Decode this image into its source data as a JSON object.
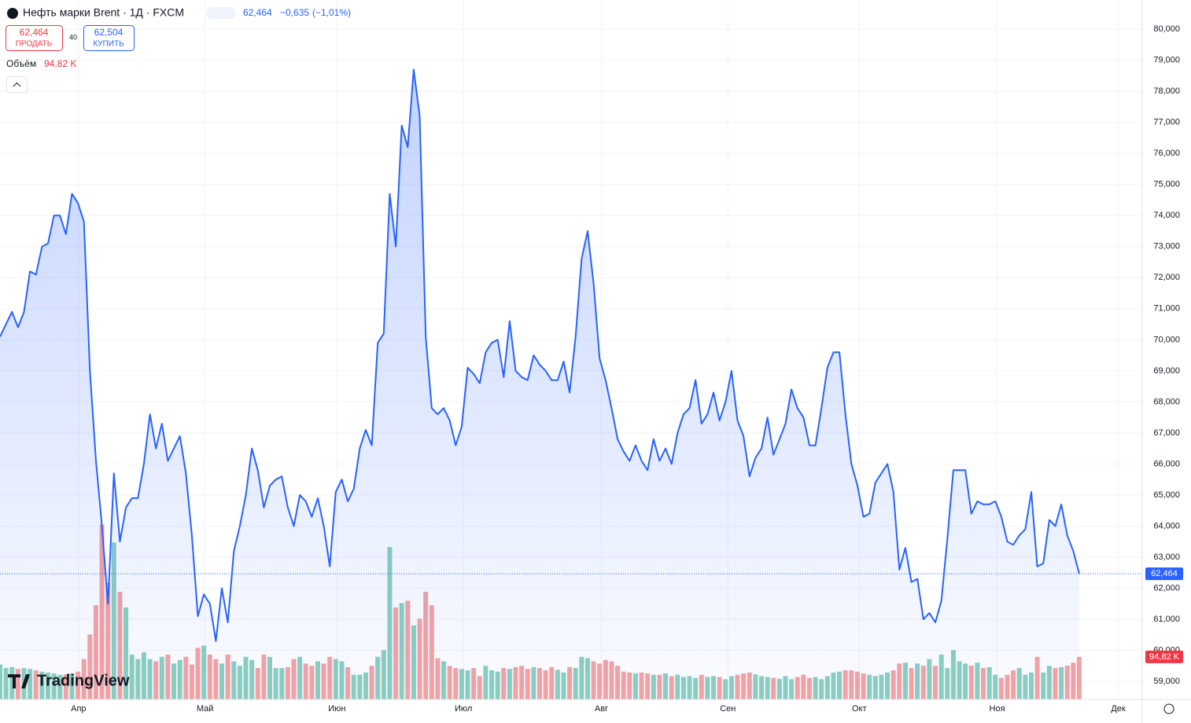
{
  "header": {
    "price": "62,464",
    "change": "−0,635",
    "change_pct": "(−1,01%)",
    "sell_price": "62,464",
    "sell_label": "ПРОДАТЬ",
    "spread": "40",
    "buy_price": "62,504",
    "buy_label": "КУПИТЬ",
    "watermark": "TradingView"
  },
  "chart_data": {
    "type": "area",
    "title": "Нефть марки Brent · 1Д · FXCM",
    "color": "#2962ff",
    "values": [
      70.1,
      70.5,
      70.9,
      70.4,
      70.9,
      72.2,
      72.1,
      73.0,
      73.1,
      74.0,
      74.0,
      73.4,
      74.7,
      74.4,
      73.8,
      69.0,
      66.1,
      64.0,
      61.5,
      65.7,
      63.5,
      64.6,
      64.9,
      64.9,
      66.0,
      67.6,
      66.5,
      67.3,
      66.1,
      66.5,
      66.9,
      65.7,
      63.7,
      61.1,
      61.8,
      61.5,
      60.3,
      62.0,
      60.9,
      63.2,
      64.0,
      65.0,
      66.5,
      65.8,
      64.6,
      65.3,
      65.5,
      65.6,
      64.6,
      64.0,
      65.0,
      64.8,
      64.3,
      64.9,
      64.0,
      62.7,
      65.1,
      65.5,
      64.8,
      65.2,
      66.5,
      67.1,
      66.6,
      69.9,
      70.2,
      74.7,
      73.0,
      76.9,
      76.2,
      78.7,
      77.2,
      70.1,
      67.8,
      67.6,
      67.8,
      67.4,
      66.6,
      67.2,
      69.1,
      68.9,
      68.6,
      69.6,
      69.9,
      70.0,
      68.8,
      70.6,
      69.0,
      68.8,
      68.7,
      69.5,
      69.2,
      69.0,
      68.7,
      68.7,
      69.3,
      68.3,
      70.1,
      72.6,
      73.5,
      71.8,
      69.4,
      68.7,
      67.8,
      66.8,
      66.4,
      66.1,
      66.6,
      66.1,
      65.8,
      66.8,
      66.1,
      66.5,
      66.0,
      67.0,
      67.6,
      67.8,
      68.7,
      67.3,
      67.6,
      68.3,
      67.4,
      68.0,
      69.0,
      67.4,
      66.9,
      65.6,
      66.2,
      66.5,
      67.5,
      66.3,
      66.8,
      67.3,
      68.4,
      67.8,
      67.5,
      66.6,
      66.6,
      67.8,
      69.1,
      69.6,
      69.6,
      67.6,
      66.0,
      65.3,
      64.3,
      64.4,
      65.4,
      65.7,
      66.0,
      65.1,
      62.6,
      63.3,
      62.2,
      62.3,
      61.0,
      61.2,
      60.9,
      61.6,
      63.6,
      65.8,
      65.8,
      65.8,
      64.4,
      64.8,
      64.7,
      64.7,
      64.8,
      64.3,
      63.5,
      63.4,
      63.7,
      63.9,
      65.1,
      62.7,
      62.8,
      64.2,
      64.0,
      64.7,
      63.7,
      63.2,
      62.464
    ],
    "last_value_label": "62,464",
    "ylim": [
      58.42,
      80.94
    ],
    "yticks": [
      {
        "value": 59,
        "label": "59,000"
      },
      {
        "value": 60,
        "label": "60,000"
      },
      {
        "value": 61,
        "label": "61,000"
      },
      {
        "value": 62,
        "label": "62,000"
      },
      {
        "value": 63,
        "label": "63,000"
      },
      {
        "value": 64,
        "label": "64,000"
      },
      {
        "value": 65,
        "label": "65,000"
      },
      {
        "value": 66,
        "label": "66,000"
      },
      {
        "value": 67,
        "label": "67,000"
      },
      {
        "value": 68,
        "label": "68,000"
      },
      {
        "value": 69,
        "label": "69,000"
      },
      {
        "value": 70,
        "label": "70,000"
      },
      {
        "value": 71,
        "label": "71,000"
      },
      {
        "value": 72,
        "label": "72,000"
      },
      {
        "value": 73,
        "label": "73,000"
      },
      {
        "value": 74,
        "label": "74,000"
      },
      {
        "value": 75,
        "label": "75,000"
      },
      {
        "value": 76,
        "label": "76,000"
      },
      {
        "value": 77,
        "label": "77,000"
      },
      {
        "value": 78,
        "label": "78,000"
      },
      {
        "value": 79,
        "label": "79,000"
      },
      {
        "value": 80,
        "label": "80,000"
      }
    ],
    "xlim": [
      0,
      190.5
    ],
    "xticks": [
      {
        "value": 13.1,
        "label": "Апр"
      },
      {
        "value": 34.2,
        "label": "Май"
      },
      {
        "value": 56.2,
        "label": "Июн"
      },
      {
        "value": 77.3,
        "label": "Июл"
      },
      {
        "value": 100.3,
        "label": "Авг"
      },
      {
        "value": 121.4,
        "label": "Сен"
      },
      {
        "value": 143.3,
        "label": "Окт"
      },
      {
        "value": 166.3,
        "label": "Ноя"
      },
      {
        "value": 186.5,
        "label": "Дек"
      }
    ],
    "grid": true,
    "volume": {
      "name": "Объём",
      "up_color": "#8ccfc0",
      "down_color": "#f5a3a3",
      "ylim": [
        0,
        1560
      ],
      "last_value_label": "94,82 K",
      "values": [
        78,
        70,
        72,
        68,
        70,
        68,
        65,
        62,
        60,
        58,
        55,
        56,
        58,
        62,
        90,
        145,
        210,
        390,
        260,
        350,
        240,
        205,
        100,
        90,
        105,
        90,
        85,
        95,
        100,
        80,
        88,
        95,
        78,
        115,
        120,
        100,
        90,
        80,
        100,
        85,
        75,
        95,
        88,
        70,
        100,
        95,
        70,
        70,
        72,
        90,
        95,
        80,
        75,
        85,
        80,
        95,
        90,
        85,
        72,
        55,
        55,
        60,
        75,
        95,
        110,
        340,
        205,
        215,
        220,
        165,
        180,
        240,
        210,
        92,
        85,
        75,
        70,
        68,
        65,
        70,
        52,
        75,
        65,
        62,
        70,
        68,
        72,
        75,
        68,
        72,
        70,
        65,
        72,
        66,
        60,
        72,
        70,
        95,
        92,
        85,
        80,
        88,
        85,
        75,
        62,
        60,
        58,
        60,
        58,
        55,
        55,
        58,
        52,
        55,
        50,
        52,
        48,
        55,
        50,
        52,
        50,
        45,
        52,
        55,
        58,
        60,
        56,
        52,
        50,
        48,
        46,
        52,
        45,
        50,
        55,
        48,
        50,
        45,
        52,
        60,
        62,
        65,
        65,
        62,
        58,
        55,
        52,
        55,
        60,
        65,
        80,
        82,
        70,
        80,
        75,
        90,
        75,
        100,
        70,
        110,
        85,
        80,
        75,
        82,
        70,
        72,
        55,
        48,
        55,
        65,
        70,
        55,
        60,
        95,
        60,
        75,
        70,
        72,
        75,
        82,
        94.82
      ]
    }
  }
}
